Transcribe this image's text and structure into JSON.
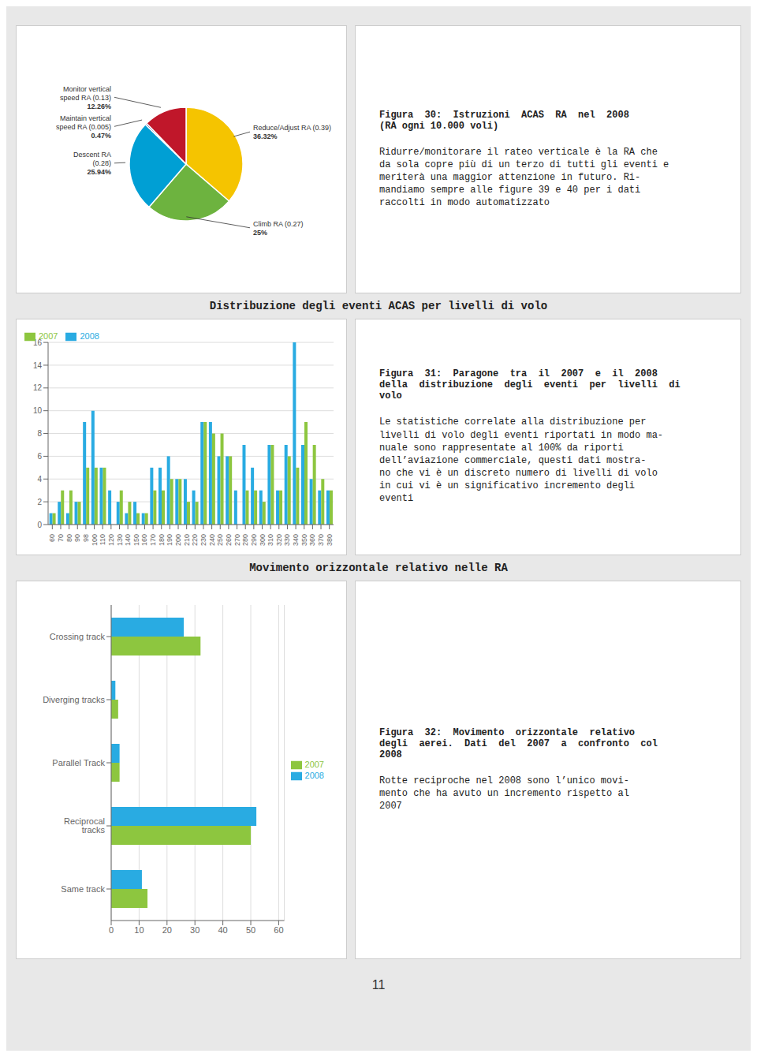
{
  "chart_data": [
    {
      "type": "pie",
      "title": "Figura  30:  Istruzioni  ACAS  RA  nel  2008\n(RA ogni 10.000 voli)",
      "annotations": [
        "Ridurre/monitorare il rateo verticale è la RA che\nda sola copre più di un terzo di tutti gli eventi e\nmeriterà una maggior attenzione in futuro. Ri-\nmandiamo sempre alle figure 39 e 40 per i dati\nraccolti in modo automatizzato"
      ],
      "categories": [
        "Reduce/Adjust RA (0.39)",
        "Climb RA (0.27)",
        "Descent RA\n(0.28)",
        "Maintain vertical\nspeed RA (0.005)",
        "Monitor vertical\nspeed RA (0.13)"
      ],
      "values": [
        36.32,
        25.0,
        25.94,
        0.47,
        12.26
      ],
      "value_labels": [
        "36.32%",
        "25%",
        "25.94%",
        "0.47%",
        "12.26%"
      ],
      "colors": [
        "#F5C400",
        "#6DB33F",
        "#009FD4",
        "#1F3A8F",
        "#C0172A"
      ],
      "data_labels": true
    },
    {
      "type": "bar",
      "title": "Figura  31:  Paragone  tra  il  2007  e  il  2008\ndella  distribuzione  degli  eventi  per  livelli  di\nvolo",
      "subtitle": "Distribuzione degli eventi ACAS per livelli di volo",
      "annotations": [
        "Le statistiche correlate alla distribuzione per\nlivelli di volo degli eventi riportati in modo ma-\nnuale sono rappresentate al 100% da riporti\ndell’aviazione commerciale, questi dati mostra-\nno che vi è un discreto numero di livelli di volo\nin cui vi è un significativo incremento degli\neventi"
      ],
      "categories": [
        "60",
        "70",
        "80",
        "90",
        "98",
        "100",
        "110",
        "120",
        "130",
        "140",
        "150",
        "160",
        "170",
        "180",
        "190",
        "200",
        "210",
        "220",
        "230",
        "240",
        "250",
        "260",
        "270",
        "280",
        "290",
        "300",
        "310",
        "320",
        "330",
        "340",
        "350",
        "360",
        "370",
        "380"
      ],
      "series": [
        {
          "name": "2008",
          "color": "#29ABE2",
          "values": [
            1,
            2,
            1,
            2,
            9,
            10,
            5,
            3,
            2,
            1,
            2,
            1,
            5,
            5,
            6,
            4,
            4,
            3,
            9,
            9,
            6,
            6,
            3,
            7,
            5,
            3,
            7,
            3,
            7,
            16,
            7,
            4,
            3,
            3
          ]
        },
        {
          "name": "2007",
          "color": "#8DC63F",
          "values": [
            1,
            3,
            3,
            2,
            5,
            5,
            5,
            0,
            3,
            2,
            1,
            1,
            3,
            3,
            4,
            4,
            2,
            2,
            9,
            8,
            8,
            6,
            0,
            3,
            3,
            2,
            7,
            3,
            6,
            5,
            9,
            7,
            4,
            3
          ]
        }
      ],
      "ylim": [
        0,
        16
      ],
      "yticks": [
        0,
        2,
        4,
        6,
        8,
        10,
        12,
        14,
        16
      ],
      "grid": true,
      "legend": "upper left"
    },
    {
      "type": "bar",
      "orientation": "horizontal",
      "title": "Figura  32:  Movimento  orizzontale  relativo\ndegli  aerei.  Dati  del  2007  a  confronto  col\n2008",
      "subtitle": "Movimento orizzontale relativo nelle RA",
      "annotations": [
        "Rotte reciproche nel 2008 sono l’unico movi-\nmento che ha avuto un incremento rispetto al\n2007"
      ],
      "categories": [
        "Crossing track",
        "Diverging tracks",
        "Parallel Track",
        "Reciprocal tracks",
        "Same track"
      ],
      "series": [
        {
          "name": "2008",
          "color": "#29ABE2",
          "values": [
            26,
            1.5,
            3,
            52,
            11
          ]
        },
        {
          "name": "2007",
          "color": "#8DC63F",
          "values": [
            32,
            2.5,
            3,
            50,
            13
          ]
        }
      ],
      "xlim": [
        0,
        62
      ],
      "xticks": [
        0,
        10,
        20,
        30,
        40,
        50,
        60
      ],
      "grid": true,
      "legend": "right"
    }
  ],
  "annotations": [
    "11"
  ]
}
